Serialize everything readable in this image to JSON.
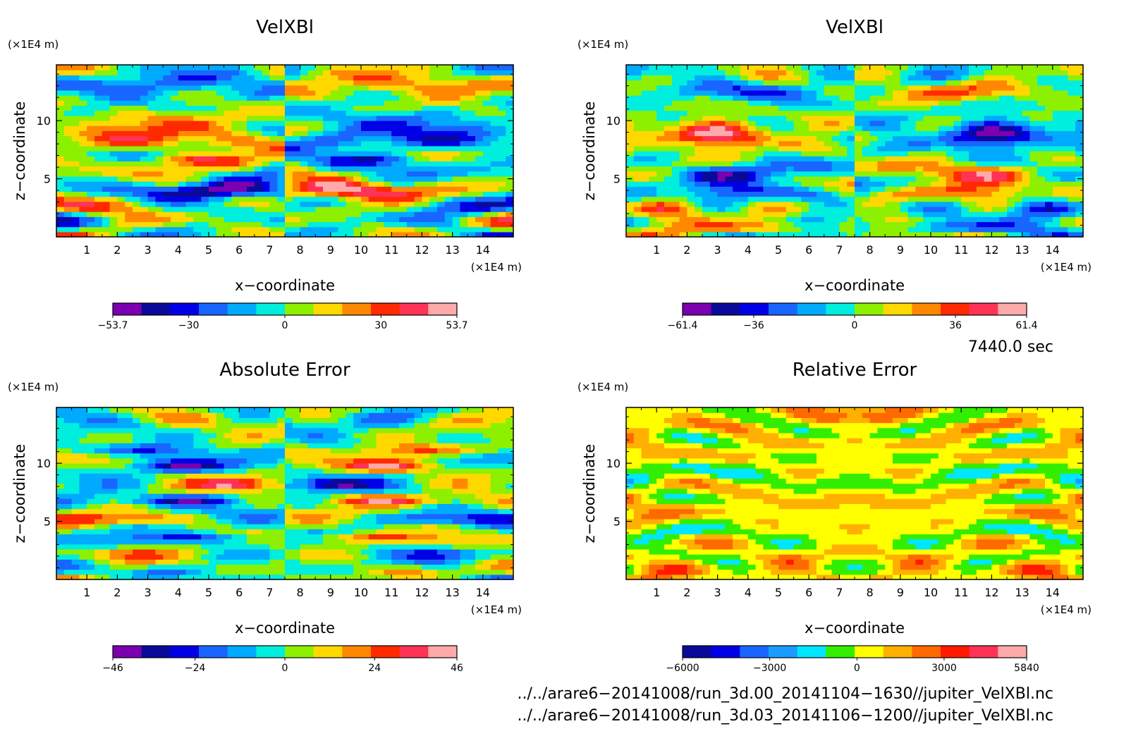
{
  "chart_data": [
    {
      "type": "heatmap",
      "title": "VelXBl",
      "xlabel": "x−coordinate",
      "ylabel": "z−coordinate",
      "x_unit": "(×1E4 m)",
      "z_unit": "(×1E4 m)",
      "x_ticks": [
        "1",
        "2",
        "3",
        "4",
        "5",
        "6",
        "7",
        "8",
        "9",
        "10",
        "11",
        "12",
        "13",
        "14"
      ],
      "z_ticks": [
        "5",
        "10"
      ],
      "xlim": [
        0,
        15
      ],
      "zlim": [
        0,
        14.8
      ],
      "colorbar": {
        "ticks": [
          {
            "v": -53.7,
            "label": "−53.7"
          },
          {
            "v": -30,
            "label": "−30"
          },
          {
            "v": 0,
            "label": "0"
          },
          {
            "v": 30,
            "label": "30"
          },
          {
            "v": 53.7,
            "label": "53.7"
          }
        ],
        "range": [
          -53.7,
          53.7
        ],
        "colors": [
          "#7a00b0",
          "#0a0a9a",
          "#0000e6",
          "#1866ff",
          "#00aaff",
          "#00eedd",
          "#8cf000",
          "#ffd800",
          "#ff8800",
          "#ff2a00",
          "#ff3355",
          "#ffaaaa"
        ]
      },
      "field": {
        "nx": 60,
        "nz": 34,
        "mirror": -1,
        "seed": 3,
        "bands": [
          {
            "z": 12.8,
            "amp": -0.55,
            "w": 1.2,
            "x0": 3.5,
            "sx": 2.5
          },
          {
            "z": 10.2,
            "amp": 0.45,
            "w": 1.0,
            "x0": 3.0,
            "sx": 3.0
          },
          {
            "z": 8.2,
            "amp": 0.5,
            "w": 1.0,
            "x0": 4.0,
            "sx": 3.0
          },
          {
            "z": 6.6,
            "amp": 0.65,
            "w": 0.6,
            "x0": 4.8,
            "sx": 1.5
          },
          {
            "z": 4.0,
            "amp": -0.85,
            "w": 0.8,
            "x0": 5.5,
            "sx": 2.0
          },
          {
            "z": 2.6,
            "amp": 0.5,
            "w": 0.8,
            "x0": 1.5,
            "sx": 2.0
          },
          {
            "z": 2.4,
            "amp": -0.4,
            "w": 0.7,
            "x0": 4.0,
            "sx": 1.5
          }
        ]
      }
    },
    {
      "type": "heatmap",
      "title": "VelXBl",
      "xlabel": "x−coordinate",
      "ylabel": "z−coordinate",
      "x_unit": "(×1E4 m)",
      "z_unit": "(×1E4 m)",
      "x_ticks": [
        "1",
        "2",
        "3",
        "4",
        "5",
        "6",
        "7",
        "8",
        "9",
        "10",
        "11",
        "12",
        "13",
        "14"
      ],
      "z_ticks": [
        "5",
        "10"
      ],
      "xlim": [
        0,
        15
      ],
      "zlim": [
        0,
        14.8
      ],
      "colorbar": {
        "ticks": [
          {
            "v": -61.4,
            "label": "−61.4"
          },
          {
            "v": -36,
            "label": "−36"
          },
          {
            "v": 0,
            "label": "0"
          },
          {
            "v": 36,
            "label": "36"
          },
          {
            "v": 61.4,
            "label": "61.4"
          }
        ],
        "range": [
          -61.4,
          61.4
        ],
        "colors": [
          "#7a00b0",
          "#0a0a9a",
          "#0000e6",
          "#1866ff",
          "#00aaff",
          "#00eedd",
          "#8cf000",
          "#ffd800",
          "#ff8800",
          "#ff2a00",
          "#ff3355",
          "#ffaaaa"
        ]
      },
      "field": {
        "nx": 60,
        "nz": 34,
        "mirror": -1,
        "seed": 11,
        "bands": [
          {
            "z": 12.5,
            "amp": -0.35,
            "w": 0.8,
            "x0": 3.5,
            "sx": 3.0
          },
          {
            "z": 8.8,
            "amp": 0.75,
            "w": 1.2,
            "x0": 2.8,
            "sx": 2.2
          },
          {
            "z": 5.5,
            "amp": -0.55,
            "w": 0.9,
            "x0": 3.5,
            "sx": 2.0
          },
          {
            "z": 3.8,
            "amp": -0.7,
            "w": 0.7,
            "x0": 4.5,
            "sx": 1.8
          },
          {
            "z": 2.4,
            "amp": 0.55,
            "w": 0.8,
            "x0": 1.2,
            "sx": 1.5
          },
          {
            "z": 0.8,
            "amp": 0.5,
            "w": 0.5,
            "x0": 4.5,
            "sx": 2.0
          }
        ]
      }
    },
    {
      "type": "heatmap",
      "title": "Absolute Error",
      "xlabel": "x−coordinate",
      "ylabel": "z−coordinate",
      "x_unit": "(×1E4 m)",
      "z_unit": "(×1E4 m)",
      "x_ticks": [
        "1",
        "2",
        "3",
        "4",
        "5",
        "6",
        "7",
        "8",
        "9",
        "10",
        "11",
        "12",
        "13",
        "14"
      ],
      "z_ticks": [
        "5",
        "10"
      ],
      "xlim": [
        0,
        15
      ],
      "zlim": [
        0,
        14.8
      ],
      "colorbar": {
        "ticks": [
          {
            "v": -46,
            "label": "−46"
          },
          {
            "v": -24,
            "label": "−24"
          },
          {
            "v": 0,
            "label": "0"
          },
          {
            "v": 24,
            "label": "24"
          },
          {
            "v": 46,
            "label": "46"
          }
        ],
        "range": [
          -46,
          46
        ],
        "colors": [
          "#7a00b0",
          "#0a0a9a",
          "#0000e6",
          "#1866ff",
          "#00aaff",
          "#00eedd",
          "#8cf000",
          "#ffd800",
          "#ff8800",
          "#ff2a00",
          "#ff3355",
          "#ffaaaa"
        ]
      },
      "field": {
        "nx": 60,
        "nz": 34,
        "mirror": -1,
        "seed": 23,
        "bands": [
          {
            "z": 11.2,
            "amp": -0.6,
            "w": 0.5,
            "x0": 2.5,
            "sx": 2.0
          },
          {
            "z": 9.8,
            "amp": -0.7,
            "w": 0.5,
            "x0": 4.2,
            "sx": 1.5
          },
          {
            "z": 8.2,
            "amp": 0.75,
            "w": 0.5,
            "x0": 5.8,
            "sx": 1.2
          },
          {
            "z": 6.8,
            "amp": -0.75,
            "w": 0.5,
            "x0": 4.0,
            "sx": 2.0
          },
          {
            "z": 5.2,
            "amp": 0.55,
            "w": 0.5,
            "x0": 3.0,
            "sx": 2.0
          },
          {
            "z": 3.6,
            "amp": -0.7,
            "w": 0.5,
            "x0": 5.0,
            "sx": 2.0
          },
          {
            "z": 2.2,
            "amp": 0.4,
            "w": 0.5,
            "x0": 2.5,
            "sx": 2.0
          },
          {
            "z": 0.8,
            "amp": -0.5,
            "w": 0.4,
            "x0": 3.5,
            "sx": 1.5
          }
        ]
      }
    },
    {
      "type": "heatmap",
      "title": "Relative Error",
      "xlabel": "x−coordinate",
      "ylabel": "z−coordinate",
      "x_unit": "(×1E4 m)",
      "z_unit": "(×1E4 m)",
      "x_ticks": [
        "1",
        "2",
        "3",
        "4",
        "5",
        "6",
        "7",
        "8",
        "9",
        "10",
        "11",
        "12",
        "13",
        "14"
      ],
      "z_ticks": [
        "5",
        "10"
      ],
      "xlim": [
        0,
        15
      ],
      "zlim": [
        0,
        14.8
      ],
      "colorbar": {
        "ticks": [
          {
            "v": -6000,
            "label": "−6000"
          },
          {
            "v": -3000,
            "label": "−3000"
          },
          {
            "v": 0,
            "label": "0"
          },
          {
            "v": 3000,
            "label": "3000"
          },
          {
            "v": 5840,
            "label": "5840"
          }
        ],
        "range": [
          -6000,
          5840
        ],
        "colors": [
          "#0a0a9a",
          "#0000e6",
          "#1866ff",
          "#1a9cff",
          "#00e6ff",
          "#33ee00",
          "#ffff00",
          "#ffb000",
          "#ff6a00",
          "#ff1a00",
          "#ff3355",
          "#ffaaaa"
        ]
      },
      "field": {
        "nx": 60,
        "nz": 34,
        "mirror": 1,
        "seed": 41,
        "base": 0.14,
        "bands": [
          {
            "z": 9.2,
            "amp": -0.22,
            "w": 1.2,
            "x0": 2.5,
            "sx": 5.0
          },
          {
            "z": 4.0,
            "amp": -0.18,
            "w": 1.0,
            "x0": 3.0,
            "sx": 4.0
          },
          {
            "z": 12.6,
            "amp": -0.12,
            "w": 0.5,
            "x0": 5.0,
            "sx": 3.0
          }
        ]
      }
    }
  ],
  "annotations": {
    "time": "7440.0 sec",
    "file1": "../../arare6−20141008/run_3d.00_20141104−1630//jupiter_VelXBl.nc",
    "file2": "../../arare6−20141008/run_3d.03_20141106−1200//jupiter_VelXBl.nc"
  }
}
